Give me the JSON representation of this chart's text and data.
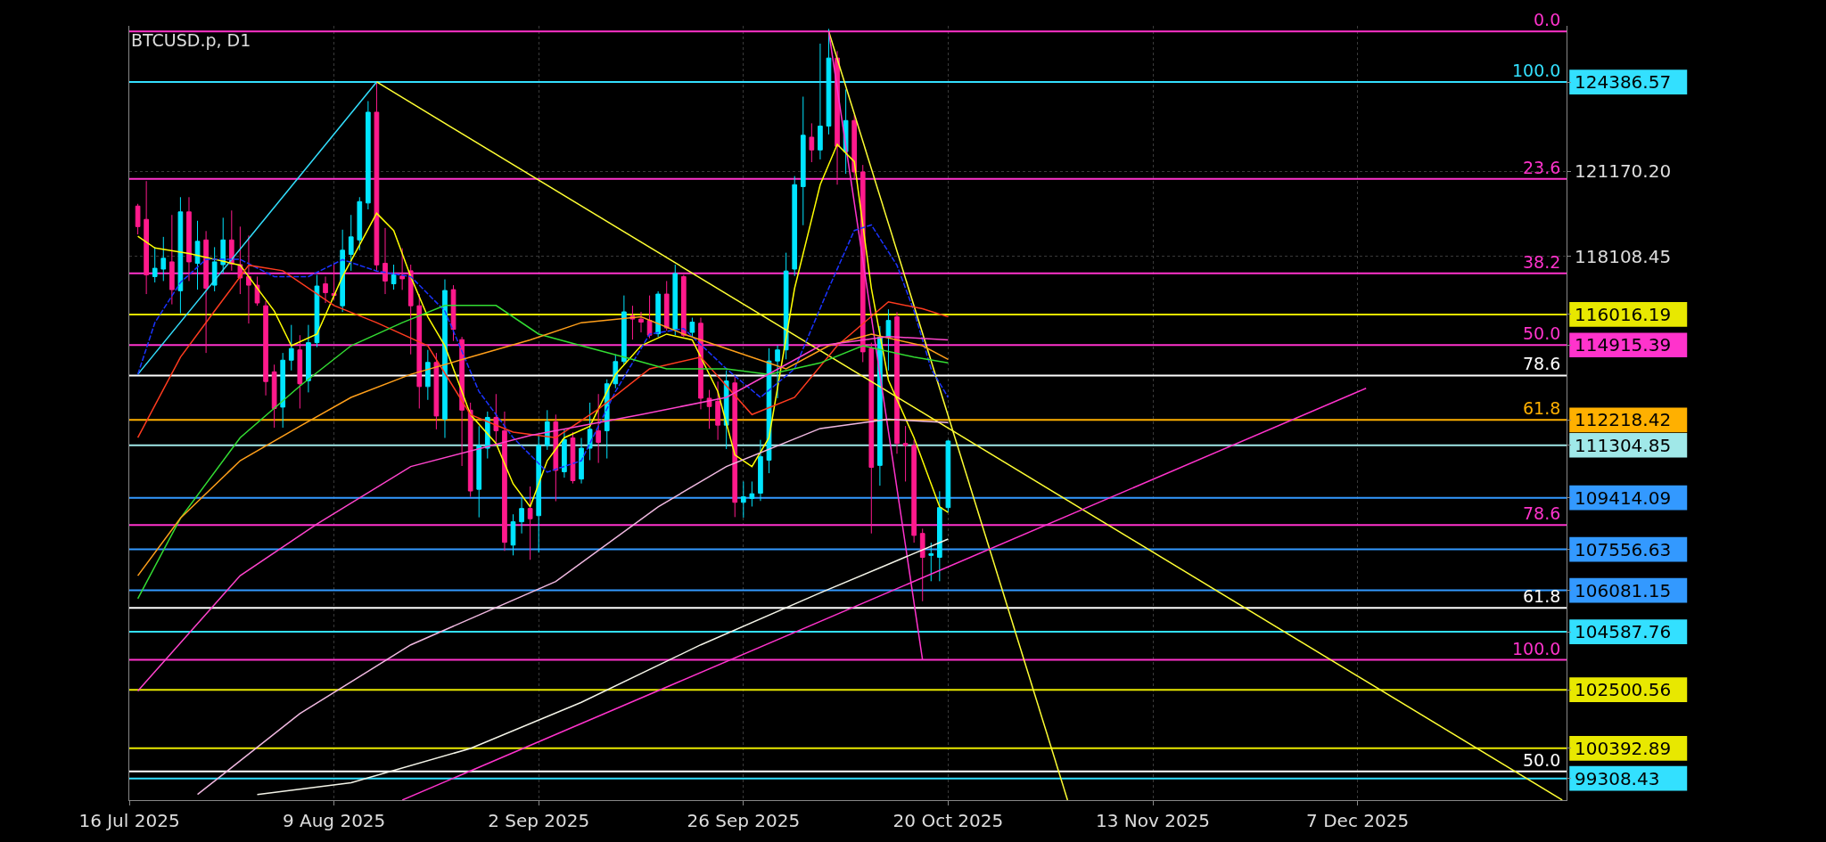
{
  "chart_data": {
    "type": "candlestick",
    "title": "BTCUSD.p, D1",
    "x": [
      "2025-07-17",
      "2025-07-18",
      "2025-07-19",
      "2025-07-20",
      "2025-07-21",
      "2025-07-22",
      "2025-07-23",
      "2025-07-24",
      "2025-07-25",
      "2025-07-26",
      "2025-07-27",
      "2025-07-28",
      "2025-07-29",
      "2025-07-30",
      "2025-07-31",
      "2025-08-01",
      "2025-08-02",
      "2025-08-03",
      "2025-08-04",
      "2025-08-05",
      "2025-08-06",
      "2025-08-07",
      "2025-08-08",
      "2025-08-09",
      "2025-08-10",
      "2025-08-11",
      "2025-08-12",
      "2025-08-13",
      "2025-08-14",
      "2025-08-15",
      "2025-08-16",
      "2025-08-17",
      "2025-08-18",
      "2025-08-19",
      "2025-08-20",
      "2025-08-21",
      "2025-08-22",
      "2025-08-23",
      "2025-08-24",
      "2025-08-25",
      "2025-08-26",
      "2025-08-27",
      "2025-08-28",
      "2025-08-29",
      "2025-08-30",
      "2025-08-31",
      "2025-09-01",
      "2025-09-02",
      "2025-09-03",
      "2025-09-04",
      "2025-09-05",
      "2025-09-06",
      "2025-09-07",
      "2025-09-08",
      "2025-09-09",
      "2025-09-10",
      "2025-09-11",
      "2025-09-12",
      "2025-09-13",
      "2025-09-14",
      "2025-09-15",
      "2025-09-16",
      "2025-09-17",
      "2025-09-18",
      "2025-09-19",
      "2025-09-20",
      "2025-09-21",
      "2025-09-22",
      "2025-09-23",
      "2025-09-24",
      "2025-09-25",
      "2025-09-26",
      "2025-09-27",
      "2025-09-28",
      "2025-09-29",
      "2025-09-30",
      "2025-10-01",
      "2025-10-02",
      "2025-10-03",
      "2025-10-04",
      "2025-10-05",
      "2025-10-06",
      "2025-10-07",
      "2025-10-08",
      "2025-10-09",
      "2025-10-10",
      "2025-10-11",
      "2025-10-12",
      "2025-10-13",
      "2025-10-14",
      "2025-10-15",
      "2025-10-16",
      "2025-10-17",
      "2025-10-18",
      "2025-10-19",
      "2025-10-20"
    ],
    "ohlc": [
      [
        119920,
        120000,
        118900,
        119180
      ],
      [
        119440,
        120820,
        116750,
        117440
      ],
      [
        117380,
        118440,
        117170,
        117680
      ],
      [
        117650,
        118810,
        117220,
        118040
      ],
      [
        117910,
        119600,
        116380,
        116910
      ],
      [
        116870,
        120240,
        116060,
        119710
      ],
      [
        119710,
        120240,
        117220,
        117910
      ],
      [
        117860,
        119390,
        116910,
        118650
      ],
      [
        118700,
        119020,
        114630,
        116960
      ],
      [
        117070,
        118440,
        116850,
        117910
      ],
      [
        117810,
        119500,
        117490,
        118700
      ],
      [
        118700,
        119760,
        117590,
        117830
      ],
      [
        117810,
        119180,
        116750,
        117330
      ],
      [
        117380,
        118860,
        115690,
        117070
      ],
      [
        117070,
        117380,
        116330,
        116430
      ],
      [
        116330,
        116500,
        113100,
        113600
      ],
      [
        113950,
        114210,
        111940,
        112630
      ],
      [
        112680,
        114630,
        111940,
        114370
      ],
      [
        114370,
        115640,
        114000,
        114790
      ],
      [
        114740,
        115270,
        112630,
        113520
      ],
      [
        113630,
        115640,
        113210,
        115000
      ],
      [
        115000,
        117440,
        114840,
        117040
      ],
      [
        117120,
        117380,
        116430,
        116800
      ],
      [
        116770,
        117860,
        116540,
        116700
      ],
      [
        116330,
        119070,
        116110,
        118330
      ],
      [
        118180,
        119600,
        117590,
        118810
      ],
      [
        118700,
        120240,
        118330,
        120080
      ],
      [
        120030,
        123700,
        119800,
        123300
      ],
      [
        123300,
        124386.57,
        117600,
        117800
      ],
      [
        117860,
        119130,
        116750,
        117220
      ],
      [
        117120,
        117810,
        116910,
        117440
      ],
      [
        117400,
        118400,
        116900,
        117300
      ],
      [
        117590,
        117810,
        114580,
        116330
      ],
      [
        116330,
        116750,
        112630,
        113420
      ],
      [
        113420,
        114740,
        112940,
        114290
      ],
      [
        114290,
        114630,
        111880,
        112360
      ],
      [
        112250,
        117280,
        111570,
        116880
      ],
      [
        116910,
        117070,
        115060,
        115480
      ],
      [
        115110,
        115210,
        110560,
        112570
      ],
      [
        112570,
        112840,
        109450,
        109660
      ],
      [
        109720,
        111990,
        108710,
        111300
      ],
      [
        111200,
        112520,
        110830,
        112310
      ],
      [
        112310,
        113150,
        111410,
        111830
      ],
      [
        111830,
        112520,
        107500,
        107810
      ],
      [
        107710,
        108820,
        107340,
        108550
      ],
      [
        108550,
        109400,
        108130,
        109030
      ],
      [
        109030,
        109820,
        107180,
        108660
      ],
      [
        108770,
        111670,
        107440,
        111300
      ],
      [
        111300,
        112570,
        111140,
        112150
      ],
      [
        112150,
        112410,
        109290,
        110400
      ],
      [
        110350,
        111880,
        110140,
        111510
      ],
      [
        111570,
        111780,
        109930,
        110030
      ],
      [
        110090,
        111570,
        109930,
        111200
      ],
      [
        111200,
        112840,
        110770,
        111880
      ],
      [
        111830,
        113150,
        110670,
        111410
      ],
      [
        111830,
        113680,
        110830,
        113520
      ],
      [
        113520,
        114580,
        113360,
        114320
      ],
      [
        114320,
        116700,
        114210,
        116110
      ],
      [
        115960,
        116330,
        115110,
        115850
      ],
      [
        115850,
        116110,
        115370,
        115740
      ],
      [
        115800,
        116700,
        115160,
        115270
      ],
      [
        115320,
        116850,
        115210,
        116750
      ],
      [
        116750,
        117220,
        115430,
        115530
      ],
      [
        115480,
        117810,
        115270,
        117490
      ],
      [
        117380,
        117440,
        115210,
        115270
      ],
      [
        115370,
        115900,
        115210,
        115740
      ],
      [
        115700,
        115900,
        112600,
        113000
      ],
      [
        113000,
        113300,
        111900,
        112700
      ],
      [
        112890,
        113600,
        111500,
        112030
      ],
      [
        112030,
        114000,
        111170,
        113620
      ],
      [
        113550,
        113800,
        108720,
        109250
      ],
      [
        109250,
        110000,
        108700,
        109450
      ],
      [
        109390,
        110000,
        109100,
        109560
      ],
      [
        109580,
        111500,
        109300,
        110900
      ],
      [
        110770,
        114800,
        110300,
        114340
      ],
      [
        114340,
        114900,
        113000,
        114740
      ],
      [
        114740,
        118240,
        114400,
        117580
      ],
      [
        117650,
        121000,
        117400,
        120690
      ],
      [
        120620,
        123860,
        119230,
        122470
      ],
      [
        122400,
        122900,
        121500,
        121940
      ],
      [
        121940,
        125770,
        121600,
        122800
      ],
      [
        122800,
        126300,
        122500,
        125250
      ],
      [
        125250,
        125500,
        120690,
        122070
      ],
      [
        121880,
        124120,
        121080,
        123000
      ],
      [
        123000,
        123200,
        120900,
        121150
      ],
      [
        121150,
        121400,
        114300,
        114670
      ],
      [
        114800,
        115000,
        108130,
        110510
      ],
      [
        110580,
        115600,
        109850,
        115200
      ],
      [
        115200,
        116200,
        114000,
        115800
      ],
      [
        115930,
        116100,
        111000,
        111370
      ],
      [
        111370,
        112000,
        110000,
        111300
      ],
      [
        111300,
        111500,
        107800,
        108060
      ],
      [
        108130,
        108300,
        105690,
        107270
      ],
      [
        107340,
        107800,
        106410,
        107400
      ],
      [
        107270,
        109650,
        106410,
        109060
      ],
      [
        109060,
        111500,
        108900,
        111460
      ]
    ],
    "colors": [
      "#ff1a8c",
      "#ff1a8c",
      "#00e5ff",
      "#00e5ff",
      "#ff1a8c",
      "#00e5ff",
      "#ff1a8c",
      "#00e5ff",
      "#ff1a8c",
      "#00e5ff",
      "#00e5ff",
      "#ff1a8c",
      "#ff1a8c",
      "#ff1a8c",
      "#ff1a8c",
      "#ff1a8c",
      "#ff1a8c",
      "#00e5ff",
      "#00e5ff",
      "#ff1a8c",
      "#00e5ff",
      "#00e5ff",
      "#ff1a8c",
      "#ff1a8c",
      "#00e5ff",
      "#00e5ff",
      "#00e5ff",
      "#00e5ff",
      "#ff1a8c",
      "#ff1a8c",
      "#00e5ff",
      "#ff1a8c",
      "#ff1a8c",
      "#ff1a8c",
      "#00e5ff",
      "#ff1a8c",
      "#00e5ff",
      "#ff1a8c",
      "#ff1a8c",
      "#ff1a8c",
      "#00e5ff",
      "#00e5ff",
      "#ff1a8c",
      "#ff1a8c",
      "#00e5ff",
      "#00e5ff",
      "#ff1a8c",
      "#00e5ff",
      "#00e5ff",
      "#ff1a8c",
      "#00e5ff",
      "#ff1a8c",
      "#00e5ff",
      "#00e5ff",
      "#ff1a8c",
      "#00e5ff",
      "#00e5ff",
      "#00e5ff",
      "#ff1a8c",
      "#ff1a8c",
      "#ff1a8c",
      "#00e5ff",
      "#ff1a8c",
      "#00e5ff",
      "#ff1a8c",
      "#00e5ff",
      "#ff1a8c",
      "#ff1a8c",
      "#ff1a8c",
      "#00e5ff",
      "#ff1a8c",
      "#00e5ff",
      "#00e5ff",
      "#00e5ff",
      "#00e5ff",
      "#00e5ff",
      "#00e5ff",
      "#00e5ff",
      "#00e5ff",
      "#ff1a8c",
      "#00e5ff",
      "#00e5ff",
      "#ff1a8c",
      "#00e5ff",
      "#ff1a8c",
      "#ff1a8c",
      "#ff1a8c",
      "#00e5ff",
      "#00e5ff",
      "#ff1a8c",
      "#ff1a8c",
      "#ff1a8c",
      "#ff1a8c",
      "#00e5ff",
      "#00e5ff",
      "#00e5ff"
    ],
    "annotations": [
      {
        "text": "0.0",
        "x": "2025-12-31",
        "y": 126210
      },
      {
        "text": "100.0",
        "x": "2025-12-31",
        "y": 124386.57
      },
      {
        "text": "23.6",
        "x": "2025-12-31",
        "y": 120900
      },
      {
        "text": "38.2",
        "x": "2025-12-31",
        "y": 117500
      },
      {
        "text": "50.0",
        "x": "2025-12-31",
        "y": 114915.39
      },
      {
        "text": "78.6",
        "x": "2025-12-31",
        "y": 113820
      },
      {
        "text": "61.8",
        "x": "2025-12-31",
        "y": 112218.42
      },
      {
        "text": "78.6",
        "x": "2025-12-31",
        "y": 108430
      },
      {
        "text": "61.8",
        "x": "2025-12-31",
        "y": 105450
      },
      {
        "text": "100.0",
        "x": "2025-12-31",
        "y": 103580
      },
      {
        "text": "50.0",
        "x": "2025-12-31",
        "y": 99560
      }
    ],
    "series": [
      {
        "type": "line",
        "color": "#33e0ff",
        "x": [
          "2025-07-17",
          "2025-08-14"
        ],
        "values": [
          113860,
          124390
        ]
      },
      {
        "type": "line",
        "color": "#ffff33",
        "x": [
          "2025-08-14",
          "2025-12-31"
        ],
        "values": [
          124390,
          98530
        ]
      },
      {
        "type": "line",
        "color": "#ffff33",
        "x": [
          "2025-10-06",
          "2025-11-03"
        ],
        "values": [
          126210,
          98530
        ]
      },
      {
        "type": "line",
        "color": "#ff33cc",
        "x": [
          "2025-10-06",
          "2025-10-17"
        ],
        "values": [
          126210,
          103580
        ]
      },
      {
        "type": "line",
        "color": "#ff33cc",
        "x": [
          "2025-08-17",
          "2025-12-08"
        ],
        "values": [
          98530,
          113360
        ]
      },
      {
        "type": "line",
        "color": "#ffff00",
        "x": [
          "2025-07-17",
          "2025-07-19",
          "2025-07-23",
          "2025-07-29",
          "2025-08-02",
          "2025-08-04",
          "2025-08-07",
          "2025-08-10",
          "2025-08-14",
          "2025-08-16",
          "2025-08-18",
          "2025-08-20",
          "2025-08-22",
          "2025-08-25",
          "2025-08-28",
          "2025-08-30",
          "2025-09-01",
          "2025-09-03",
          "2025-09-05",
          "2025-09-08",
          "2025-09-11",
          "2025-09-14",
          "2025-09-17",
          "2025-09-20",
          "2025-09-23",
          "2025-09-25",
          "2025-09-27",
          "2025-09-29",
          "2025-10-02",
          "2025-10-05",
          "2025-10-07",
          "2025-10-09",
          "2025-10-11",
          "2025-10-13",
          "2025-10-16",
          "2025-10-18",
          "2025-10-19",
          "2025-10-20"
        ],
        "values": [
          118830,
          118410,
          118210,
          117790,
          116140,
          114890,
          115310,
          117380,
          119660,
          119040,
          117380,
          115930,
          114890,
          112410,
          111370,
          109920,
          109090,
          110750,
          111580,
          111990,
          113860,
          114890,
          115310,
          115100,
          113240,
          110960,
          110540,
          111580,
          116960,
          120690,
          122140,
          121520,
          116960,
          113650,
          111580,
          109920,
          109090,
          108890
        ]
      },
      {
        "type": "line",
        "color": "#1a33ff",
        "line_style": "dashed",
        "x": [
          "2025-07-17",
          "2025-07-19",
          "2025-07-22",
          "2025-07-25",
          "2025-07-29",
          "2025-08-02",
          "2025-08-06",
          "2025-08-10",
          "2025-08-14",
          "2025-08-18",
          "2025-08-22",
          "2025-08-26",
          "2025-08-30",
          "2025-09-03",
          "2025-09-07",
          "2025-09-11",
          "2025-09-15",
          "2025-09-19",
          "2025-09-24",
          "2025-09-28",
          "2025-10-02",
          "2025-10-06",
          "2025-10-09",
          "2025-10-11",
          "2025-10-14",
          "2025-10-16",
          "2025-10-18",
          "2025-10-20"
        ],
        "values": [
          113860,
          115720,
          117170,
          118000,
          118000,
          117380,
          117380,
          117990,
          117580,
          117380,
          116140,
          113240,
          111580,
          110340,
          110750,
          113240,
          115310,
          115510,
          114060,
          113030,
          114060,
          116960,
          119040,
          119240,
          117790,
          116140,
          114060,
          113030
        ]
      },
      {
        "type": "line",
        "color": "#ff3b1f",
        "x": [
          "2025-07-17",
          "2025-07-22",
          "2025-07-26",
          "2025-07-30",
          "2025-08-03",
          "2025-08-09",
          "2025-08-14",
          "2025-08-20",
          "2025-08-25",
          "2025-08-30",
          "2025-09-04",
          "2025-09-09",
          "2025-09-15",
          "2025-09-21",
          "2025-09-27",
          "2025-10-02",
          "2025-10-07",
          "2025-10-13",
          "2025-10-17",
          "2025-10-20"
        ],
        "values": [
          111580,
          114480,
          116140,
          117790,
          117590,
          116340,
          115720,
          114890,
          112410,
          111780,
          111580,
          112610,
          114060,
          114480,
          112410,
          113030,
          114890,
          116470,
          116220,
          115930
        ]
      },
      {
        "type": "line",
        "color": "#33dd33",
        "x": [
          "2025-07-17",
          "2025-07-22",
          "2025-07-29",
          "2025-08-05",
          "2025-08-11",
          "2025-08-17",
          "2025-08-22",
          "2025-08-28",
          "2025-09-02",
          "2025-09-07",
          "2025-09-12",
          "2025-09-17",
          "2025-09-24",
          "2025-09-29",
          "2025-10-05",
          "2025-10-10",
          "2025-10-16",
          "2025-10-20"
        ],
        "values": [
          105780,
          108680,
          111580,
          113440,
          114890,
          115720,
          116340,
          116340,
          115310,
          114890,
          114480,
          114060,
          114060,
          113860,
          114270,
          114890,
          114480,
          114270
        ]
      },
      {
        "type": "line",
        "color": "#ff9f1a",
        "x": [
          "2025-07-17",
          "2025-07-22",
          "2025-07-29",
          "2025-08-05",
          "2025-08-11",
          "2025-08-18",
          "2025-08-25",
          "2025-09-01",
          "2025-09-07",
          "2025-09-14",
          "2025-09-19",
          "2025-09-25",
          "2025-10-01",
          "2025-10-06",
          "2025-10-11",
          "2025-10-17",
          "2025-10-20"
        ],
        "values": [
          106610,
          108680,
          110750,
          111990,
          113030,
          113860,
          114480,
          115100,
          115720,
          115930,
          115310,
          114680,
          114060,
          114890,
          115310,
          114890,
          114400
        ]
      },
      {
        "type": "line",
        "color": "#ff44cc",
        "x": [
          "2025-07-17",
          "2025-07-29",
          "2025-08-07",
          "2025-08-18",
          "2025-09-01",
          "2025-09-14",
          "2025-09-24",
          "2025-10-05",
          "2025-10-13",
          "2025-10-20"
        ],
        "values": [
          102460,
          106610,
          108470,
          110540,
          111660,
          112410,
          113030,
          114890,
          115220,
          115100
        ]
      },
      {
        "type": "line",
        "color": "#f0b8e0",
        "x": [
          "2025-07-24",
          "2025-08-05",
          "2025-08-18",
          "2025-09-04",
          "2025-09-16",
          "2025-09-24",
          "2025-10-05",
          "2025-10-13",
          "2025-10-20"
        ],
        "values": [
          98730,
          101640,
          104120,
          106400,
          109090,
          110540,
          111910,
          112240,
          112120
        ]
      },
      {
        "type": "line",
        "color": "#f4f4e8",
        "x": [
          "2025-07-31",
          "2025-08-11",
          "2025-08-25",
          "2025-09-07",
          "2025-09-21",
          "2025-10-05",
          "2025-10-13",
          "2025-10-20"
        ],
        "values": [
          98730,
          99150,
          100390,
          102050,
          104120,
          105990,
          107020,
          107930
        ]
      }
    ],
    "ref_lines": [
      {
        "axis": "y",
        "value": 126210,
        "color": "#ff33cc"
      },
      {
        "axis": "y",
        "value": 124386.57,
        "color": "#33e0ff"
      },
      {
        "axis": "y",
        "value": 120900,
        "color": "#ff33cc"
      },
      {
        "axis": "y",
        "value": 117500,
        "color": "#ff33cc"
      },
      {
        "axis": "y",
        "value": 116016.19,
        "color": "#e8e800"
      },
      {
        "axis": "y",
        "value": 114915.39,
        "color": "#ff33cc"
      },
      {
        "axis": "y",
        "value": 113820,
        "color": "#ffffff"
      },
      {
        "axis": "y",
        "value": 112218.42,
        "color": "#ffb000"
      },
      {
        "axis": "y",
        "value": 111304.85,
        "color": "#a0e8e8"
      },
      {
        "axis": "y",
        "value": 109414.09,
        "color": "#3399ff"
      },
      {
        "axis": "y",
        "value": 108430,
        "color": "#ff33cc"
      },
      {
        "axis": "y",
        "value": 107556.63,
        "color": "#3399ff"
      },
      {
        "axis": "y",
        "value": 106081.15,
        "color": "#3399ff"
      },
      {
        "axis": "y",
        "value": 105450,
        "color": "#ffffff"
      },
      {
        "axis": "y",
        "value": 104587.76,
        "color": "#33e0ff"
      },
      {
        "axis": "y",
        "value": 103580,
        "color": "#ff33cc"
      },
      {
        "axis": "y",
        "value": 102500.56,
        "color": "#e8e800"
      },
      {
        "axis": "y",
        "value": 100392.89,
        "color": "#e8e800"
      },
      {
        "axis": "y",
        "value": 99560,
        "color": "#ffffff"
      },
      {
        "axis": "y",
        "value": 99308.43,
        "color": "#33e0ff"
      }
    ],
    "xlim": [
      "2025-07-16",
      "2025-12-31T12:00"
    ],
    "xticks": [
      {
        "value": "2025-07-16",
        "label": "16 Jul 2025"
      },
      {
        "value": "2025-08-09",
        "label": "9 Aug 2025"
      },
      {
        "value": "2025-09-02",
        "label": "2 Sep 2025"
      },
      {
        "value": "2025-09-26",
        "label": "26 Sep 2025"
      },
      {
        "value": "2025-10-20",
        "label": "20 Oct 2025"
      },
      {
        "value": "2025-11-13",
        "label": "13 Nov 2025"
      },
      {
        "value": "2025-12-07",
        "label": "7 Dec 2025"
      }
    ],
    "ylim": [
      98527,
      126410
    ],
    "yticks": [
      124386.57,
      {
        "value": 121170.2,
        "label": "121170.20"
      },
      118108.45,
      116016.19,
      114915.39,
      112218.42,
      111304.85,
      109414.09,
      107556.63,
      106081.15,
      104587.76,
      102500.56,
      100392.89,
      99308.43
    ],
    "grid": true
  }
}
